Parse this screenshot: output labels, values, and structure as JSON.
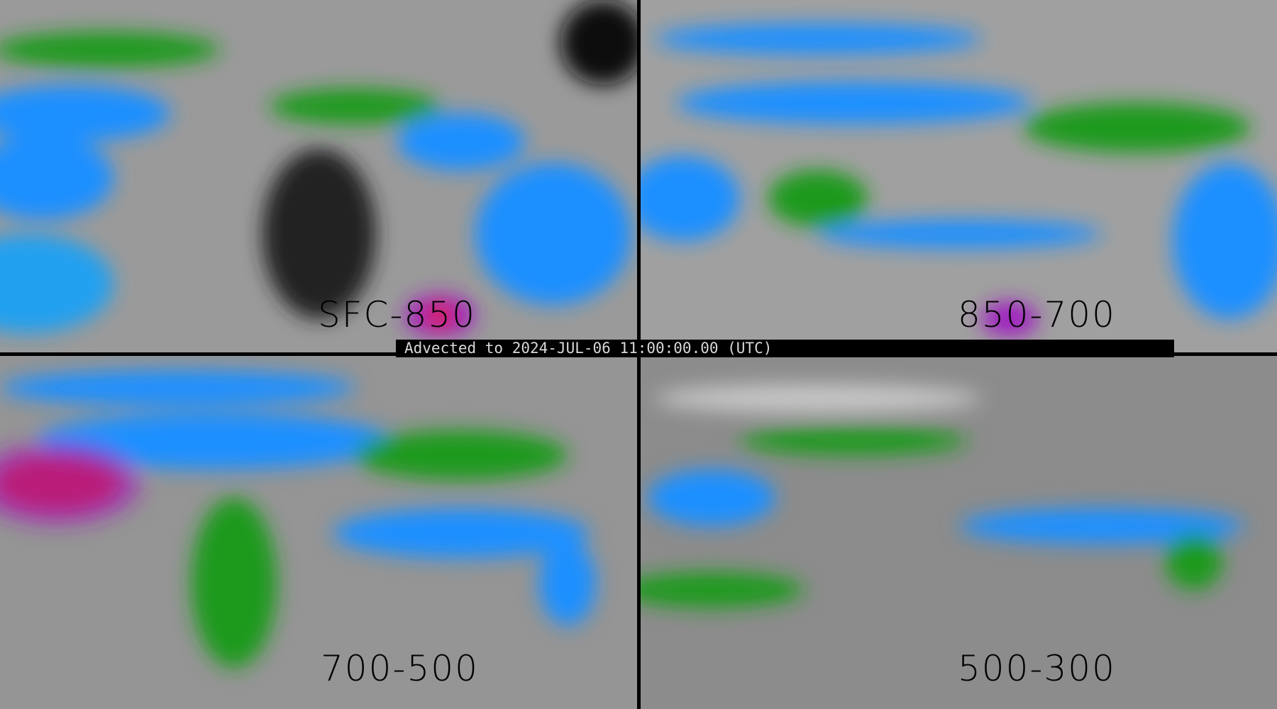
{
  "banner": {
    "text": "Advected to 2024-JUL-06 11:00:00.00 (UTC)"
  },
  "panels": [
    {
      "label": "SFC-850"
    },
    {
      "label": "850-700"
    },
    {
      "label": "700-500"
    },
    {
      "label": "500-300"
    }
  ],
  "colors": {
    "background": "#8a8a8a",
    "green": "#1a9a1a",
    "blue": "#1e90ff",
    "cyan": "#20c8e8",
    "magenta": "#a020c0",
    "red": "#e02010",
    "yellow": "#ffe000",
    "frame": "#000000"
  }
}
